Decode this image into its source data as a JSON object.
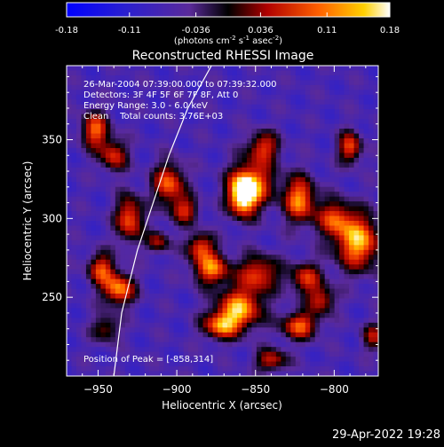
{
  "chart_data": {
    "type": "heatmap",
    "title": "Reconstructed RHESSI Image",
    "xlabel": "Heliocentric X (arcsec)",
    "ylabel": "Heliocentric Y (arcsec)",
    "xlim": [
      -970,
      -772
    ],
    "ylim": [
      200,
      397
    ],
    "x_ticks": [
      -950,
      -900,
      -850,
      -800
    ],
    "y_ticks": [
      250,
      300,
      350
    ],
    "colorbar": {
      "min": -0.18,
      "max": 0.18,
      "ticks": [
        "-0.18",
        "-0.11",
        "-0.036",
        "0.036",
        "0.11",
        "0.18"
      ],
      "unit_prefix": "(photons cm",
      "unit_exp1": "-2",
      "unit_mid": " s",
      "unit_exp2": "-1",
      "unit_mid2": " asec",
      "unit_exp3": "-2",
      "unit_suffix": ")"
    },
    "info_lines": [
      "26-Mar-2004 07:39:00.000 to 07:39:32.000",
      "Detectors: 3F 4F 5F 6F 7F 8F, Att 0",
      "Energy Range: 3.0 - 6.0 keV",
      "Clean    Total counts: 3.76E+03"
    ],
    "peak_label": "Position of Peak = [-858,314]",
    "peak": [
      -858,
      314
    ],
    "blobs": [
      {
        "x": -858,
        "y": 314,
        "amp": 0.18,
        "sx": 6,
        "sy": 9
      },
      {
        "x": -852,
        "y": 322,
        "amp": 0.12,
        "sx": 10,
        "sy": 10
      },
      {
        "x": -822,
        "y": 312,
        "amp": 0.14,
        "sx": 7,
        "sy": 10
      },
      {
        "x": -785,
        "y": 285,
        "amp": 0.16,
        "sx": 10,
        "sy": 12
      },
      {
        "x": -800,
        "y": 300,
        "amp": 0.09,
        "sx": 8,
        "sy": 8
      },
      {
        "x": -878,
        "y": 268,
        "amp": 0.13,
        "sx": 8,
        "sy": 7
      },
      {
        "x": -848,
        "y": 265,
        "amp": 0.1,
        "sx": 9,
        "sy": 8
      },
      {
        "x": -860,
        "y": 243,
        "amp": 0.15,
        "sx": 10,
        "sy": 9
      },
      {
        "x": -872,
        "y": 232,
        "amp": 0.12,
        "sx": 8,
        "sy": 6
      },
      {
        "x": -822,
        "y": 232,
        "amp": 0.12,
        "sx": 8,
        "sy": 6
      },
      {
        "x": -818,
        "y": 262,
        "amp": 0.09,
        "sx": 7,
        "sy": 7
      },
      {
        "x": -808,
        "y": 248,
        "amp": 0.08,
        "sx": 6,
        "sy": 6
      },
      {
        "x": -937,
        "y": 255,
        "amp": 0.14,
        "sx": 7,
        "sy": 7
      },
      {
        "x": -948,
        "y": 268,
        "amp": 0.1,
        "sx": 6,
        "sy": 7
      },
      {
        "x": -930,
        "y": 300,
        "amp": 0.12,
        "sx": 6,
        "sy": 10
      },
      {
        "x": -952,
        "y": 356,
        "amp": 0.12,
        "sx": 6,
        "sy": 8
      },
      {
        "x": -940,
        "y": 340,
        "amp": 0.09,
        "sx": 6,
        "sy": 7
      },
      {
        "x": -905,
        "y": 322,
        "amp": 0.12,
        "sx": 7,
        "sy": 9
      },
      {
        "x": -895,
        "y": 305,
        "amp": 0.08,
        "sx": 6,
        "sy": 6
      },
      {
        "x": -845,
        "y": 345,
        "amp": 0.09,
        "sx": 7,
        "sy": 7
      },
      {
        "x": -885,
        "y": 282,
        "amp": 0.1,
        "sx": 6,
        "sy": 6
      },
      {
        "x": -790,
        "y": 345,
        "amp": 0.11,
        "sx": 5,
        "sy": 7
      },
      {
        "x": -912,
        "y": 285,
        "amp": 0.06,
        "sx": 5,
        "sy": 5
      },
      {
        "x": -840,
        "y": 210,
        "amp": 0.08,
        "sx": 7,
        "sy": 5
      },
      {
        "x": -775,
        "y": 225,
        "amp": 0.06,
        "sx": 5,
        "sy": 6
      },
      {
        "x": -945,
        "y": 230,
        "amp": 0.05,
        "sx": 6,
        "sy": 6
      }
    ],
    "limb_curve": [
      [
        -940,
        200
      ],
      [
        -935,
        240
      ],
      [
        -925,
        280
      ],
      [
        -915,
        310
      ],
      [
        -905,
        340
      ],
      [
        -893,
        370
      ],
      [
        -878,
        397
      ]
    ]
  },
  "footer": {
    "timestamp": "29-Apr-2022 19:28"
  }
}
